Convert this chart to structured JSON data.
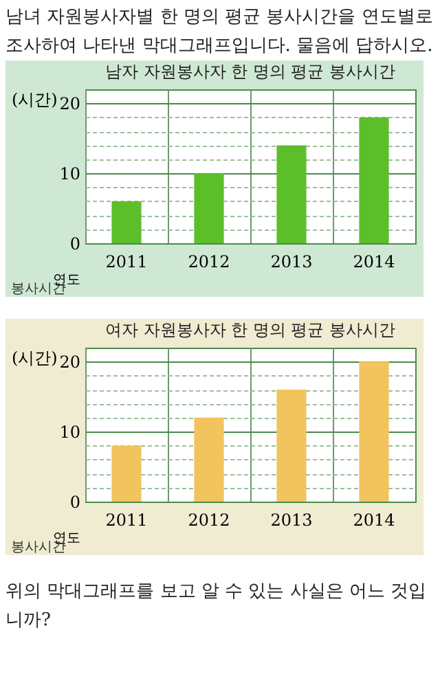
{
  "chart_data": [
    {
      "type": "bar",
      "title": "남자 자원봉사자 한 명의 평균 봉사시간",
      "xlabel": "연도",
      "ylabel": "(시간)",
      "categories": [
        "2011",
        "2012",
        "2013",
        "2014"
      ],
      "values": [
        6,
        10,
        14,
        18
      ],
      "color": "#5cbf2a",
      "ylim": [
        0,
        22
      ],
      "yticks": [
        0,
        {
          "value": 2,
          "label": null
        },
        {
          "value": 4,
          "label": null
        },
        {
          "value": 6,
          "label": null
        },
        {
          "value": 8,
          "label": null
        },
        10,
        {
          "value": 12,
          "label": null
        },
        {
          "value": 14,
          "label": null
        },
        {
          "value": 16,
          "label": null
        },
        {
          "value": 18,
          "label": null
        },
        20
      ],
      "grid": true,
      "annotations": [
        "남녀 자원봉사자별 한 명의 평균 봉사시간을 연도별로 조사하여 나타낸 막대그래프입니다. 물음에 답하시오.",
        "봉사시간"
      ]
    },
    {
      "type": "bar",
      "title": "여자 자원봉사자 한 명의 평균 봉사시간",
      "xlabel": "연도",
      "ylabel": "(시간)",
      "categories": [
        "2011",
        "2012",
        "2013",
        "2014"
      ],
      "values": [
        8,
        12,
        16,
        20
      ],
      "color": "#f2c45e",
      "ylim": [
        0,
        22
      ],
      "yticks": [
        0,
        {
          "value": 2,
          "label": null
        },
        {
          "value": 4,
          "label": null
        },
        {
          "value": 6,
          "label": null
        },
        {
          "value": 8,
          "label": null
        },
        10,
        {
          "value": 12,
          "label": null
        },
        {
          "value": 14,
          "label": null
        },
        {
          "value": 16,
          "label": null
        },
        {
          "value": 18,
          "label": null
        },
        20
      ],
      "grid": true,
      "annotations": [
        "봉사시간",
        "위의 막대그래프를 보고 알 수 있는 사실은 어느 것입니까?"
      ]
    }
  ]
}
